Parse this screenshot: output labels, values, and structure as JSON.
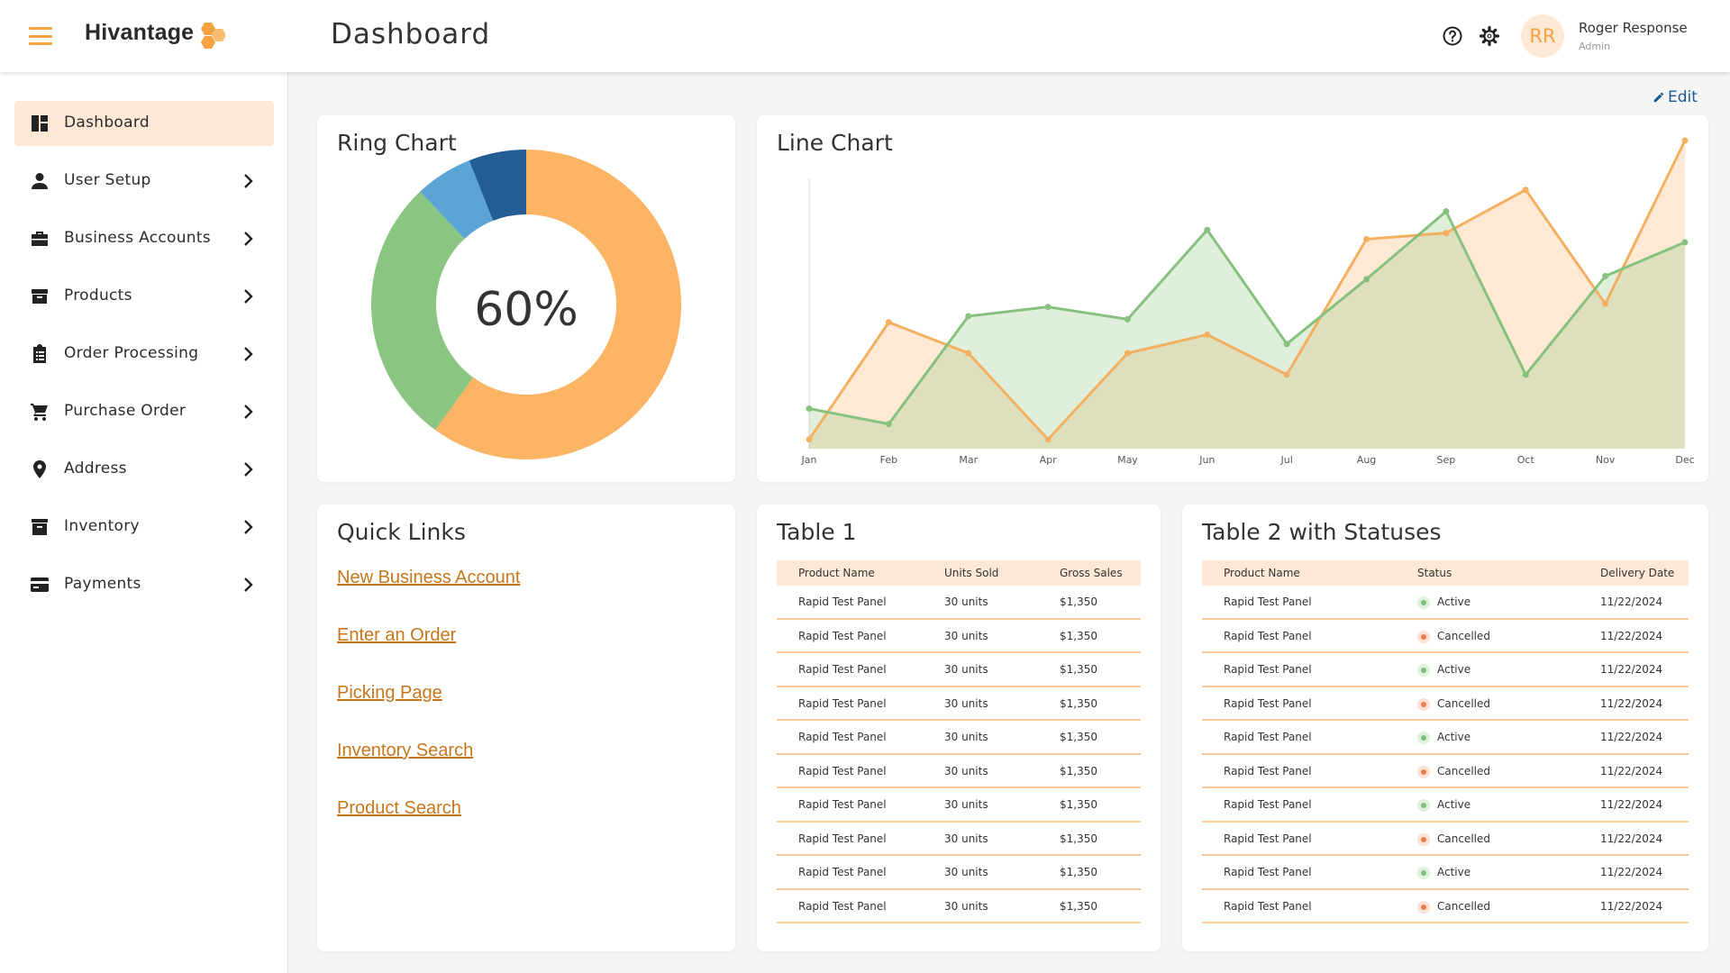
{
  "header": {
    "brand": "Hivantage",
    "page_title": "Dashboard",
    "user_initials": "RR",
    "user_name": "Roger Response",
    "user_role": "Admin"
  },
  "sidebar": {
    "items": [
      {
        "label": "Dashboard",
        "icon": "dashboard-icon",
        "active": true
      },
      {
        "label": "User Setup",
        "icon": "user-icon"
      },
      {
        "label": "Business Accounts",
        "icon": "briefcase-icon"
      },
      {
        "label": "Products",
        "icon": "box-icon"
      },
      {
        "label": "Order Processing",
        "icon": "clipboard-icon"
      },
      {
        "label": "Purchase Order",
        "icon": "cart-icon"
      },
      {
        "label": "Address",
        "icon": "location-pin-icon"
      },
      {
        "label": "Inventory",
        "icon": "archive-icon"
      },
      {
        "label": "Payments",
        "icon": "credit-card-icon"
      }
    ]
  },
  "main": {
    "edit_label": "Edit",
    "ring_card": {
      "title": "Ring Chart",
      "center_label": "60%"
    },
    "line_card": {
      "title": "Line Chart"
    },
    "quick_links": {
      "title": "Quick Links",
      "links": [
        "New Business Account",
        "Enter an Order",
        "Picking Page",
        "Inventory Search",
        "Product Search"
      ]
    },
    "table1": {
      "title": "Table 1",
      "columns": [
        "Product Name",
        "Units Sold",
        "Gross Sales"
      ],
      "rows": [
        [
          "Rapid Test Panel",
          "30 units",
          "$1,350"
        ],
        [
          "Rapid Test Panel",
          "30 units",
          "$1,350"
        ],
        [
          "Rapid Test Panel",
          "30 units",
          "$1,350"
        ],
        [
          "Rapid Test Panel",
          "30 units",
          "$1,350"
        ],
        [
          "Rapid Test Panel",
          "30 units",
          "$1,350"
        ],
        [
          "Rapid Test Panel",
          "30 units",
          "$1,350"
        ],
        [
          "Rapid Test Panel",
          "30 units",
          "$1,350"
        ],
        [
          "Rapid Test Panel",
          "30 units",
          "$1,350"
        ],
        [
          "Rapid Test Panel",
          "30 units",
          "$1,350"
        ],
        [
          "Rapid Test Panel",
          "30 units",
          "$1,350"
        ]
      ]
    },
    "table2": {
      "title": "Table 2 with Statuses",
      "columns": [
        "Product Name",
        "Status",
        "Delivery Date"
      ],
      "rows": [
        [
          "Rapid Test Panel",
          "Active",
          "11/22/2024"
        ],
        [
          "Rapid Test Panel",
          "Cancelled",
          "11/22/2024"
        ],
        [
          "Rapid Test Panel",
          "Active",
          "11/22/2024"
        ],
        [
          "Rapid Test Panel",
          "Cancelled",
          "11/22/2024"
        ],
        [
          "Rapid Test Panel",
          "Active",
          "11/22/2024"
        ],
        [
          "Rapid Test Panel",
          "Cancelled",
          "11/22/2024"
        ],
        [
          "Rapid Test Panel",
          "Active",
          "11/22/2024"
        ],
        [
          "Rapid Test Panel",
          "Cancelled",
          "11/22/2024"
        ],
        [
          "Rapid Test Panel",
          "Active",
          "11/22/2024"
        ],
        [
          "Rapid Test Panel",
          "Cancelled",
          "11/22/2024"
        ]
      ]
    }
  },
  "colors": {
    "accent": "#f4a340",
    "accent_light": "#fde8d6",
    "link": "#c8761a",
    "edit": "#1d5a96",
    "active_status": "#7cc07c",
    "cancelled_status": "#ef7b4f"
  },
  "chart_data": [
    {
      "type": "pie",
      "title": "Ring Chart",
      "donut": true,
      "center_label": "60%",
      "values": [
        60,
        28,
        6,
        6
      ],
      "colors": [
        "#fbb464",
        "#8bc582",
        "#5ba5d6",
        "#235d94"
      ]
    },
    {
      "type": "area",
      "title": "Line Chart",
      "categories": [
        "Jan",
        "Feb",
        "Mar",
        "Apr",
        "May",
        "Jun",
        "Jul",
        "Aug",
        "Sep",
        "Oct",
        "Nov",
        "Dec"
      ],
      "ylim": [
        0,
        100
      ],
      "series": [
        {
          "color": "#f4b061",
          "values": [
            3,
            41,
            31,
            3,
            31,
            37,
            24,
            68,
            70,
            84,
            47,
            100
          ]
        },
        {
          "color": "#86c17d",
          "values": [
            13,
            8,
            43,
            46,
            42,
            71,
            34,
            55,
            77,
            24,
            56,
            67
          ]
        }
      ]
    }
  ]
}
